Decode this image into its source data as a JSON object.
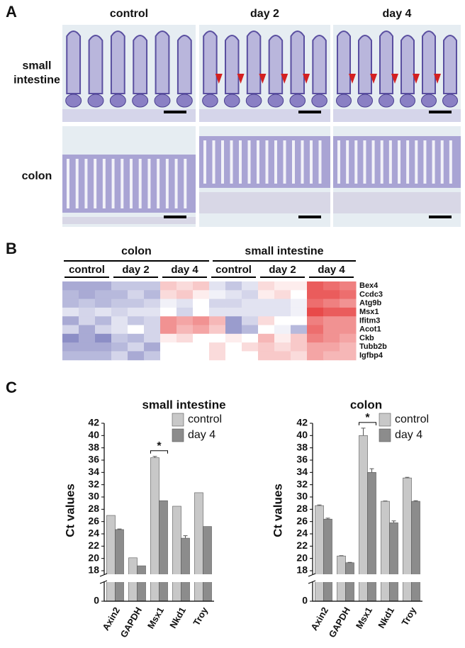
{
  "panel_a": {
    "label": "A",
    "columns": [
      "control",
      "day 2",
      "day 4"
    ],
    "rows": [
      {
        "label_lines": [
          "small",
          "intestine"
        ]
      },
      {
        "label_lines": [
          "colon"
        ]
      }
    ]
  },
  "panel_b": {
    "label": "B",
    "groups": [
      "colon",
      "small intestine"
    ],
    "conditions": [
      "control",
      "day 2",
      "day 4",
      "control",
      "day 2",
      "day 4"
    ],
    "genes": [
      "Bex4",
      "Ccdc3",
      "Atg9b",
      "Msx1",
      "Ifitm3",
      "Acot1",
      "Ckb",
      "Tubb2b",
      "Igfbp4"
    ],
    "highlight_gene_color": "#d42020",
    "color_scale": {
      "low": "#6f72b8",
      "mid": "#ffffff",
      "high": "#e84a4a"
    },
    "vlim": [
      -1,
      1
    ],
    "matrix": [
      [
        -0.6,
        -0.6,
        -0.6,
        -0.4,
        -0.4,
        -0.4,
        0.3,
        0.2,
        0.3,
        -0.2,
        -0.4,
        -0.2,
        0.2,
        0.1,
        0.1,
        0.9,
        0.8,
        0.7
      ],
      [
        -0.5,
        -0.6,
        -0.5,
        -0.5,
        -0.3,
        -0.5,
        0.2,
        0.3,
        0.1,
        -0.1,
        -0.2,
        -0.3,
        0.1,
        0.2,
        0,
        0.9,
        0.9,
        0.8
      ],
      [
        -0.5,
        -0.4,
        -0.5,
        -0.4,
        -0.4,
        -0.3,
        -0.1,
        -0.2,
        0,
        -0.3,
        -0.3,
        -0.2,
        -0.2,
        -0.2,
        -0.1,
        0.8,
        0.7,
        0.6
      ],
      [
        -0.2,
        -0.3,
        -0.2,
        -0.3,
        -0.2,
        -0.2,
        0,
        -0.3,
        0,
        -0.2,
        -0.2,
        -0.2,
        -0.2,
        -0.2,
        -0.1,
        1,
        0.9,
        0.9
      ],
      [
        -0.6,
        -0.3,
        -0.5,
        -0.2,
        -0.4,
        -0.3,
        0.6,
        0.5,
        0.6,
        0.4,
        -0.7,
        -0.3,
        0.2,
        0,
        0,
        0.7,
        0.6,
        0.6
      ],
      [
        -0.3,
        -0.6,
        -0.3,
        -0.2,
        0,
        -0.3,
        0.6,
        0.4,
        0.5,
        0.3,
        -0.7,
        -0.5,
        0,
        -0.1,
        -0.5,
        0.8,
        0.6,
        0.6
      ],
      [
        -0.8,
        -0.6,
        -0.8,
        -0.4,
        -0.5,
        -0.3,
        0.1,
        0.2,
        0,
        0,
        0.1,
        0,
        0.4,
        0.1,
        0.3,
        0.7,
        0.6,
        0.5
      ],
      [
        -0.6,
        -0.6,
        -0.6,
        -0.5,
        -0.3,
        -0.6,
        0,
        0,
        0,
        0.2,
        0,
        0.2,
        0.3,
        0.2,
        0.3,
        0.5,
        0.5,
        0.4
      ],
      [
        -0.5,
        -0.5,
        -0.5,
        -0.3,
        -0.6,
        -0.4,
        0,
        0,
        0,
        0.2,
        0,
        0,
        0.3,
        0.3,
        0.2,
        0.5,
        0.4,
        0.4
      ]
    ]
  },
  "panel_c": {
    "label": "C"
  },
  "chart_data": [
    {
      "type": "bar",
      "title": "small intestine",
      "ylabel": "Ct values",
      "categories": [
        "Axin2",
        "GAPDH",
        "Msx1",
        "Nkd1",
        "Troy"
      ],
      "series": [
        {
          "name": "control",
          "color": "#c8c8c8",
          "values": [
            27.0,
            20.1,
            36.4,
            28.5,
            30.7
          ],
          "errors": [
            0,
            0,
            0.2,
            0,
            0
          ]
        },
        {
          "name": "day 4",
          "color": "#8c8c8c",
          "values": [
            24.7,
            18.8,
            29.4,
            23.3,
            25.2
          ],
          "errors": [
            0.1,
            0,
            0,
            0.4,
            0
          ]
        }
      ],
      "ylim": [
        0,
        42
      ],
      "axis_break": [
        0,
        18
      ],
      "yticks": [
        0,
        18,
        20,
        22,
        24,
        26,
        28,
        30,
        32,
        34,
        36,
        38,
        40,
        42
      ],
      "legend": "top-right",
      "significance": "*"
    },
    {
      "type": "bar",
      "title": "colon",
      "ylabel": "Ct values",
      "categories": [
        "Axin2",
        "GAPDH",
        "Msx1",
        "Nkd1",
        "Troy"
      ],
      "series": [
        {
          "name": "control",
          "color": "#c8c8c8",
          "values": [
            28.6,
            20.4,
            40.0,
            29.3,
            33.1
          ],
          "errors": [
            0.1,
            0.05,
            1.2,
            0.05,
            0.1
          ]
        },
        {
          "name": "day 4",
          "color": "#8c8c8c",
          "values": [
            26.4,
            19.3,
            34.0,
            25.8,
            29.3
          ],
          "errors": [
            0.15,
            0.05,
            0.6,
            0.3,
            0.1
          ]
        }
      ],
      "ylim": [
        0,
        42
      ],
      "axis_break": [
        0,
        18
      ],
      "yticks": [
        0,
        18,
        20,
        22,
        24,
        26,
        28,
        30,
        32,
        34,
        36,
        38,
        40,
        42
      ],
      "legend": "top-right",
      "significance": "*"
    }
  ]
}
